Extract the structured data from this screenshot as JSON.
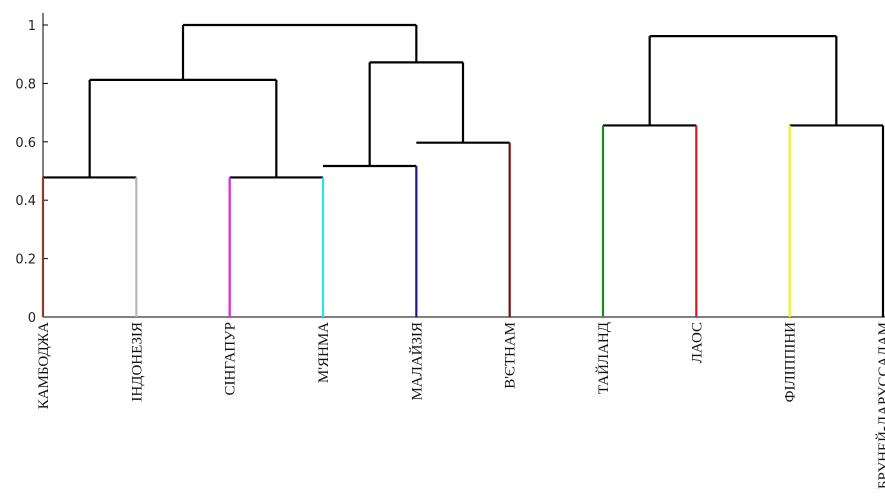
{
  "chart_data": {
    "type": "dendrogram",
    "ylim": [
      0,
      1
    ],
    "yticks": [
      {
        "value": 0,
        "label": "0"
      },
      {
        "value": 0.2,
        "label": "0.2"
      },
      {
        "value": 0.4,
        "label": "0.4"
      },
      {
        "value": 0.6,
        "label": "0.6"
      },
      {
        "value": 0.8,
        "label": "0.8"
      },
      {
        "value": 1,
        "label": "1"
      }
    ],
    "leaves": [
      {
        "name": "КАМБОДЖА",
        "color": "#8b3a2b"
      },
      {
        "name": "ІНДОНЕЗІЯ",
        "color": "#b8b8b8"
      },
      {
        "name": "СІНГАПУР",
        "color": "#e020e0"
      },
      {
        "name": "М'ЯНМА",
        "color": "#30e0f0"
      },
      {
        "name": "МАЛАЙЗІЯ",
        "color": "#1a1a8c"
      },
      {
        "name": "В'ЄТНАМ",
        "color": "#6b1010"
      },
      {
        "name": "ТАЙЛАНД",
        "color": "#1a8a1a"
      },
      {
        "name": "ЛАОС",
        "color": "#c02020"
      },
      {
        "name": "ФІЛІППІНИ",
        "color": "#f0f020"
      },
      {
        "name": "БРУНЕЙ-ДАРУССАЛАМ",
        "color": "#000000"
      }
    ],
    "merges": [
      {
        "left": 0,
        "right": 1,
        "height": 0.478
      },
      {
        "left": 2,
        "right": 3,
        "height": 0.478
      },
      {
        "left": 3,
        "right": 4,
        "height": 0.517
      },
      {
        "left": 4,
        "right": 5,
        "height": 0.597
      },
      {
        "left": 6,
        "right": 7,
        "height": 0.656
      },
      {
        "left": 8,
        "right": 9,
        "height": 0.656
      },
      {
        "left": 10,
        "right": 11,
        "height": 0.812
      },
      {
        "left": 12,
        "right": 13,
        "height": 0.872
      },
      {
        "left": 14,
        "right": 15,
        "height": 0.962
      },
      {
        "left": 16,
        "right": 17,
        "height": 1.0
      }
    ]
  }
}
